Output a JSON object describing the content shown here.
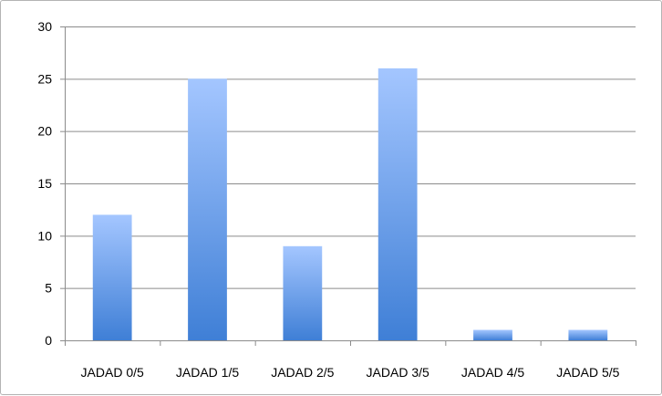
{
  "chart_data": {
    "type": "bar",
    "title": "",
    "xlabel": "",
    "ylabel": "",
    "categories": [
      "JADAD 0/5",
      "JADAD 1/5",
      "JADAD 2/5",
      "JADAD 3/5",
      "JADAD 4/5",
      "JADAD 5/5"
    ],
    "values": [
      12,
      25,
      9,
      26,
      1,
      1
    ],
    "ylim": [
      0,
      30
    ],
    "yticks": [
      "0",
      "5",
      "10",
      "15",
      "20",
      "25",
      "30"
    ],
    "grid": true,
    "legend": "none",
    "colors": {
      "bar_top": "#a4c6ff",
      "bar_bottom": "#3f7fd6",
      "grid": "#8c8c8c",
      "axis": "#8c8c8c"
    }
  }
}
